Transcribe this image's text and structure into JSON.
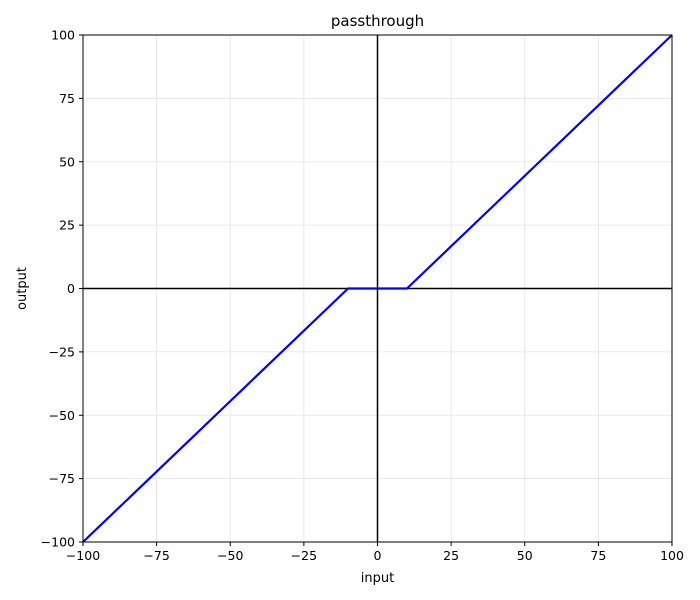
{
  "chart_data": {
    "type": "line",
    "title": "passthrough",
    "xlabel": "input",
    "ylabel": "output",
    "xlim": [
      -100,
      100
    ],
    "ylim": [
      -100,
      100
    ],
    "xticks": [
      -100,
      -75,
      -50,
      -25,
      0,
      25,
      50,
      75,
      100
    ],
    "yticks": [
      -100,
      -75,
      -50,
      -25,
      0,
      25,
      50,
      75,
      100
    ],
    "xtick_labels": [
      "−100",
      "−75",
      "−50",
      "−25",
      "0",
      "25",
      "50",
      "75",
      "100"
    ],
    "ytick_labels": [
      "−100",
      "−75",
      "−50",
      "−25",
      "0",
      "25",
      "50",
      "75",
      "100"
    ],
    "grid": true,
    "reference_lines": {
      "x": 0,
      "y": 0,
      "color": "#000000"
    },
    "series": [
      {
        "color": "#0000ff",
        "x": [
          -100,
          -10,
          10,
          100
        ],
        "y": [
          -100,
          0,
          0,
          100
        ]
      }
    ]
  }
}
